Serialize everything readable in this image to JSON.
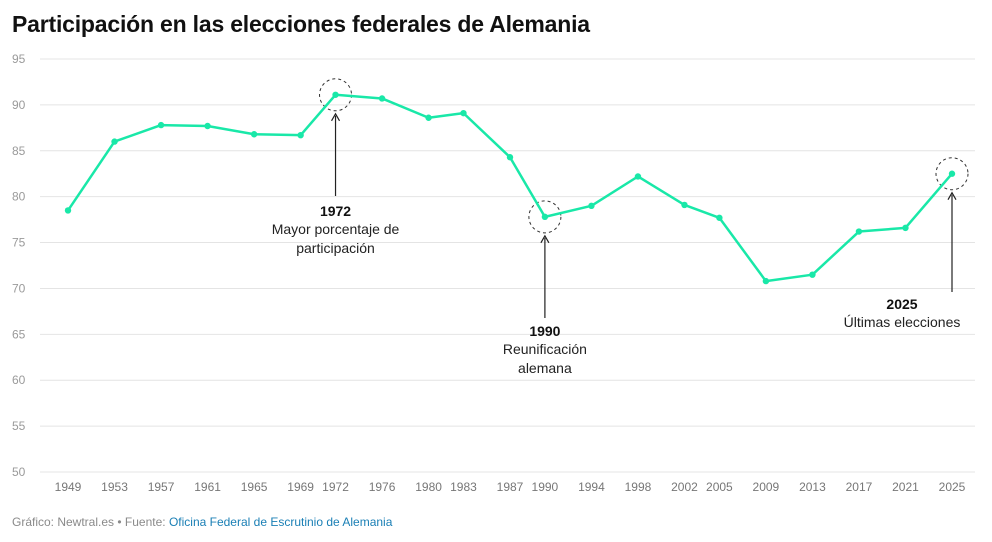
{
  "title": "Participación en las elecciones federales de Alemania",
  "footer": {
    "prefix": "Gráfico: Newtral.es • Fuente: ",
    "source": "Oficina Federal de Escrutinio de Alemania"
  },
  "colors": {
    "line": "#19e8a8",
    "grid": "#e4e4e4",
    "tick": "#9a9a9a",
    "annotation": "#111111"
  },
  "chart_data": {
    "type": "line",
    "title": "Participación en las elecciones federales de Alemania",
    "xlabel": "",
    "ylabel": "",
    "ylim": [
      50,
      95
    ],
    "yticks": [
      50,
      55,
      60,
      65,
      70,
      75,
      80,
      85,
      90,
      95
    ],
    "grid": true,
    "x": [
      "1949",
      "1953",
      "1957",
      "1961",
      "1965",
      "1969",
      "1972",
      "1976",
      "1980",
      "1983",
      "1987",
      "1990",
      "1994",
      "1998",
      "2002",
      "2005",
      "2009",
      "2013",
      "2017",
      "2021",
      "2025"
    ],
    "series": [
      {
        "values": [
          78.5,
          86.0,
          87.8,
          87.7,
          86.8,
          86.7,
          91.1,
          90.7,
          88.6,
          89.1,
          84.3,
          77.8,
          79.0,
          82.2,
          79.1,
          77.7,
          70.8,
          71.5,
          76.2,
          76.6,
          82.5
        ]
      }
    ],
    "annotations": [
      {
        "x": "1972",
        "year": "1972",
        "text": "Mayor porcentaje de participación"
      },
      {
        "x": "1990",
        "year": "1990",
        "text": "Reunificación alemana"
      },
      {
        "x": "2025",
        "year": "2025",
        "text": "Últimas elecciones"
      }
    ]
  }
}
